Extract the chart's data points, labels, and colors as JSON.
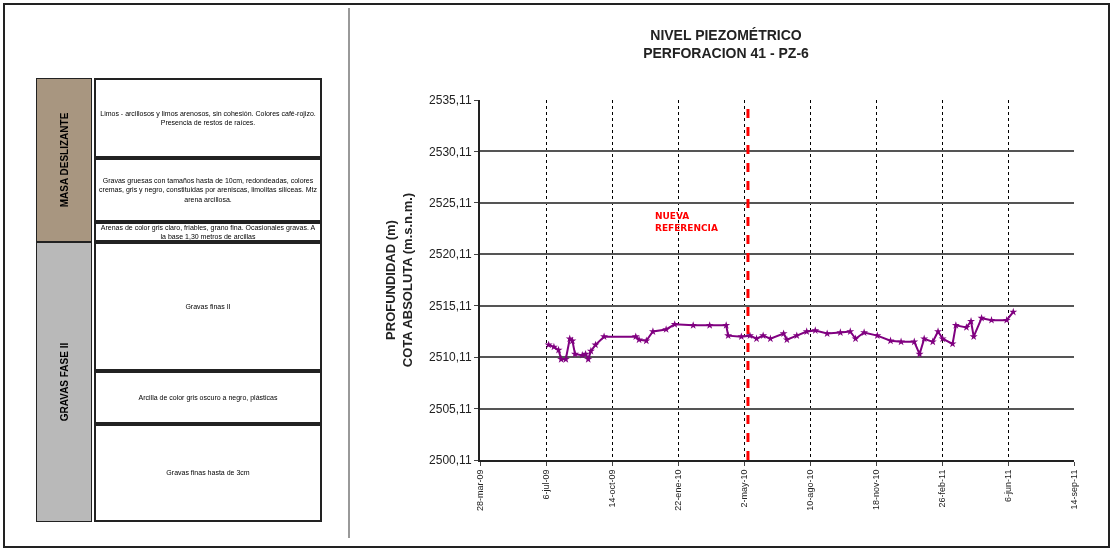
{
  "chart_data": [
    {
      "type": "other",
      "annotations": [
        "MASA DESLIZANTE",
        "GRAVAS FASE II",
        "Limos - arcillosos y limos arenosos, sin cohesión. Colores café-rojizo. Presencia de restos de raíces.",
        "Gravas gruesas con tamaños hasta de 10cm, redondeadas, colores cremas, gris y negro, constituidas por areniscas, limolitas silíceas. Mtz arena arcillosa.",
        "Arenas de color gris claro, friables, grano fina. Ocasionales gravas. A la base 1,30 metros de arcillas",
        "Gravas finas II",
        "Arcilla de color gris oscuro a negro, plásticas",
        "Gravas finas hasta de 3cm"
      ]
    },
    {
      "type": "line",
      "title": "NIVEL PIEZOMÉTRICO\nPERFORACION 41 - PZ-6",
      "ylabel": "PROFUNDIDAD (m)\nCOTA ABSOLUTA (m.s.n.m.)",
      "x": [
        "2009-07-10",
        "2009-07-18",
        "2009-07-25",
        "2009-07-29",
        "2009-08-05",
        "2009-08-11",
        "2009-08-15",
        "2009-08-19",
        "2009-08-30",
        "2009-09-04",
        "2009-09-08",
        "2009-09-12",
        "2009-09-19",
        "2009-10-02",
        "2009-11-19",
        "2009-11-24",
        "2009-12-05",
        "2009-12-15",
        "2010-01-04",
        "2010-01-17",
        "2010-02-14",
        "2010-03-11",
        "2010-04-05",
        "2010-04-08",
        "2010-04-28",
        "2010-05-11",
        "2010-05-21",
        "2010-05-31",
        "2010-06-11",
        "2010-07-01",
        "2010-07-06",
        "2010-07-21",
        "2010-08-05",
        "2010-08-18",
        "2010-09-05",
        "2010-09-25",
        "2010-10-10",
        "2010-10-18",
        "2010-10-31",
        "2010-11-20",
        "2010-12-10",
        "2010-12-26",
        "2011-01-15",
        "2011-01-23",
        "2011-01-30",
        "2011-02-12",
        "2011-02-20",
        "2011-02-27",
        "2011-03-14",
        "2011-03-19",
        "2011-04-04",
        "2011-04-11",
        "2011-04-15",
        "2011-04-27",
        "2011-05-12",
        "2011-06-04",
        "2011-06-14"
      ],
      "series": [
        {
          "color": "#800080",
          "values": [
            2511.3,
            2511.1,
            2510.8,
            2509.9,
            2509.9,
            2511.9,
            2511.7,
            2510.4,
            2510.3,
            2510.4,
            2509.9,
            2510.7,
            2511.3,
            2512.1,
            2512.1,
            2511.8,
            2511.7,
            2512.6,
            2512.8,
            2513.3,
            2513.2,
            2513.2,
            2513.2,
            2512.2,
            2512.1,
            2512.2,
            2511.9,
            2512.2,
            2511.9,
            2512.4,
            2511.8,
            2512.2,
            2512.6,
            2512.7,
            2512.4,
            2512.5,
            2512.6,
            2511.9,
            2512.5,
            2512.2,
            2511.7,
            2511.6,
            2511.6,
            2510.4,
            2511.9,
            2511.6,
            2512.6,
            2511.9,
            2511.4,
            2513.2,
            2513.0,
            2513.6,
            2512.1,
            2513.9,
            2513.7,
            2513.7,
            2514.5
          ]
        }
      ],
      "xlim": [
        "2009-03-28",
        "2011-09-14"
      ],
      "xticks": [
        {
          "value": "2009-03-28",
          "label": "28-mar-09"
        },
        {
          "value": "2009-07-06",
          "label": "6-jul-09"
        },
        {
          "value": "2009-10-14",
          "label": "14-oct-09"
        },
        {
          "value": "2010-01-22",
          "label": "22-ene-10"
        },
        {
          "value": "2010-05-02",
          "label": "2-may-10"
        },
        {
          "value": "2010-08-10",
          "label": "10-ago-10"
        },
        {
          "value": "2010-11-18",
          "label": "18-nov-10"
        },
        {
          "value": "2011-02-26",
          "label": "26-feb-11"
        },
        {
          "value": "2011-06-06",
          "label": "6-jun-11"
        },
        {
          "value": "2011-09-14",
          "label": "14-sep-11"
        }
      ],
      "ylim": [
        2500.11,
        2535.11
      ],
      "yticks": [
        {
          "value": 2500.11,
          "label": "2500,11"
        },
        {
          "value": 2505.11,
          "label": "2505,11"
        },
        {
          "value": 2510.11,
          "label": "2510,11"
        },
        {
          "value": 2515.11,
          "label": "2515,11"
        },
        {
          "value": 2520.11,
          "label": "2520,11"
        },
        {
          "value": 2525.11,
          "label": "2525,11"
        },
        {
          "value": 2530.11,
          "label": "2530,11"
        },
        {
          "value": 2535.11,
          "label": "2535,11"
        }
      ],
      "ref_lines": [
        {
          "axis": "x",
          "value": "2010-05-08",
          "label": "NUEVA\nREFERENCIA",
          "color": "#ff0000",
          "line_style": "dashed"
        }
      ],
      "grid": true,
      "marker": "star",
      "line_style": "solid"
    }
  ]
}
